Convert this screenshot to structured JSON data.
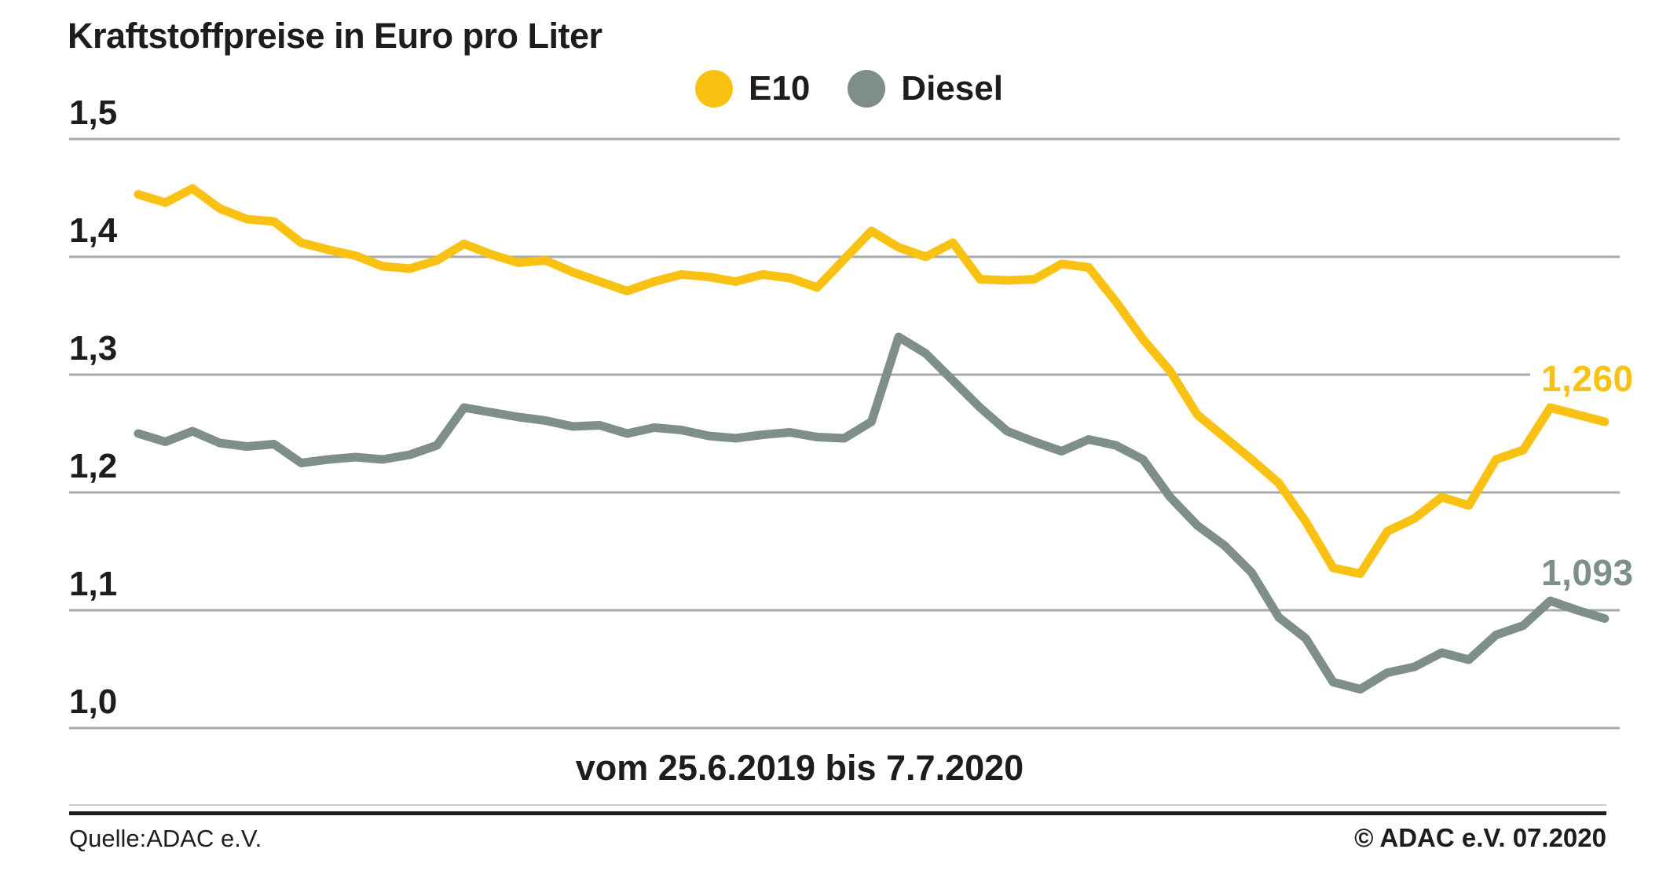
{
  "title": "Kraftstoffpreise in Euro pro Liter",
  "caption": "vom 25.6.2019 bis 7.7.2020",
  "footer": {
    "source": "Quelle:ADAC e.V.",
    "copyright": "© ADAC e.V. 07.2020"
  },
  "legend": [
    {
      "label": "E10",
      "color": "#f9c213"
    },
    {
      "label": "Diesel",
      "color": "#7e8e8a"
    }
  ],
  "end_labels": {
    "e10": "1,260",
    "diesel": "1,093"
  },
  "colors": {
    "e10": "#f9c213",
    "diesel": "#7e8e8a",
    "gridline": "#a6aaac",
    "text": "#1d1d1b"
  },
  "chart_data": {
    "type": "line",
    "title": "Kraftstoffpreise in Euro pro Liter",
    "xlabel": "vom 25.6.2019 bis 7.7.2020",
    "ylabel": "Euro pro Liter",
    "x_range": {
      "start": "25.6.2019",
      "end": "7.7.2020",
      "interval": "weekly"
    },
    "n_points": 55,
    "ylim": [
      1.0,
      1.5
    ],
    "grid": "horizontal",
    "legend_position": "top",
    "yticks": [
      {
        "label": "1,5",
        "value": 1.5
      },
      {
        "label": "1,4",
        "value": 1.4
      },
      {
        "label": "1,3",
        "value": 1.3
      },
      {
        "label": "1,2",
        "value": 1.2
      },
      {
        "label": "1,1",
        "value": 1.1
      },
      {
        "label": "1,0",
        "value": 1.0
      }
    ],
    "series": [
      {
        "name": "E10",
        "color": "#f9c213",
        "end_value_label": "1,260",
        "values": [
          1.453,
          1.446,
          1.458,
          1.441,
          1.432,
          1.43,
          1.412,
          1.406,
          1.401,
          1.392,
          1.39,
          1.397,
          1.411,
          1.402,
          1.395,
          1.397,
          1.387,
          1.379,
          1.371,
          1.379,
          1.385,
          1.383,
          1.379,
          1.385,
          1.382,
          1.374,
          1.398,
          1.422,
          1.408,
          1.4,
          1.412,
          1.381,
          1.38,
          1.381,
          1.394,
          1.391,
          1.362,
          1.33,
          1.303,
          1.266,
          1.247,
          1.228,
          1.208,
          1.175,
          1.136,
          1.131,
          1.167,
          1.178,
          1.196,
          1.189,
          1.228,
          1.236,
          1.272,
          1.266,
          1.26
        ]
      },
      {
        "name": "Diesel",
        "color": "#7e8e8a",
        "end_value_label": "1,093",
        "values": [
          1.25,
          1.243,
          1.252,
          1.242,
          1.239,
          1.241,
          1.225,
          1.228,
          1.23,
          1.228,
          1.232,
          1.24,
          1.272,
          1.268,
          1.264,
          1.261,
          1.256,
          1.257,
          1.25,
          1.255,
          1.253,
          1.248,
          1.246,
          1.249,
          1.251,
          1.247,
          1.246,
          1.26,
          1.332,
          1.318,
          1.295,
          1.272,
          1.252,
          1.243,
          1.235,
          1.245,
          1.24,
          1.228,
          1.196,
          1.172,
          1.155,
          1.132,
          1.094,
          1.076,
          1.039,
          1.033,
          1.047,
          1.052,
          1.064,
          1.058,
          1.079,
          1.087,
          1.108,
          1.1,
          1.093
        ]
      }
    ]
  }
}
